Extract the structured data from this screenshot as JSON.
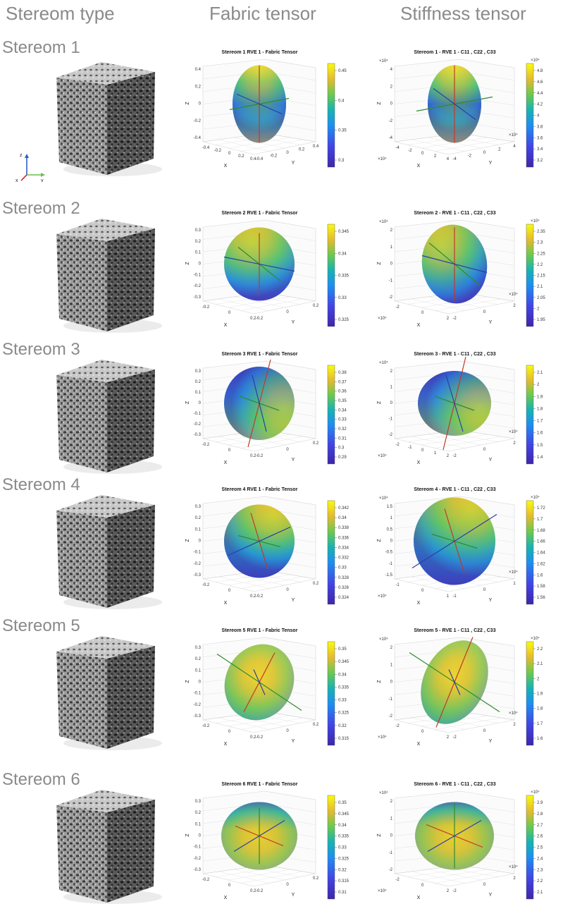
{
  "headers": {
    "col1": "Stereom type",
    "col2": "Fabric tensor",
    "col3": "Stiffness tensor"
  },
  "axes_icon": {
    "z": "z",
    "y": "y",
    "x": "x"
  },
  "rows": [
    {
      "label": "Stereom 1",
      "fabric": {
        "title": "Stereom 1 RVE 1 - Fabric Tensor",
        "zticks": [
          "0.4",
          "0.2",
          "0",
          "-0.2",
          "-0.4"
        ],
        "xticks": [
          "-0.4",
          "-0.2",
          "0",
          "0.2",
          "0.4"
        ],
        "yticks": [
          "-0.4",
          "-0.2",
          "0",
          "0.2",
          "0.4"
        ],
        "cbticks": [
          "0.45",
          "0.4",
          "0.35",
          "0.3"
        ],
        "xlabel": "X",
        "ylabel": "Y",
        "zlabel": "Z"
      },
      "stiff": {
        "title": "Stereom 1 - RVE 1 - C11 , C22 , C33",
        "multiplier": "×10⁴",
        "cbmultiplier": "×10⁴",
        "zticks": [
          "4",
          "2",
          "0",
          "-2",
          "-4"
        ],
        "xticks": [
          "-4",
          "-2",
          "0",
          "2",
          "4"
        ],
        "yticks": [
          "-4",
          "-2",
          "0",
          "2",
          "4"
        ],
        "cbticks": [
          "4.8",
          "4.6",
          "4.4",
          "4.2",
          "4",
          "3.8",
          "3.6",
          "3.4",
          "3.2"
        ],
        "xlabel": "X",
        "ylabel": "Y",
        "zlabel": "Z"
      }
    },
    {
      "label": "Stereom 2",
      "fabric": {
        "title": "Stereom 2 RVE 1 - Fabric Tensor",
        "zticks": [
          "0.3",
          "0.2",
          "0.1",
          "0",
          "-0.1",
          "-0.2",
          "-0.3"
        ],
        "xticks": [
          "-0.2",
          "0",
          "0.2"
        ],
        "yticks": [
          "-0.2",
          "0",
          "0.2"
        ],
        "cbticks": [
          "0.345",
          "0.34",
          "0.335",
          "0.33",
          "0.325"
        ],
        "xlabel": "X",
        "ylabel": "Y",
        "zlabel": "Z"
      },
      "stiff": {
        "title": "Stereom 2 - RVE 1 - C11 , C22 , C33",
        "multiplier": "×10⁴",
        "cbmultiplier": "×10⁴",
        "zticks": [
          "2",
          "1",
          "0",
          "-1",
          "-2"
        ],
        "xticks": [
          "-2",
          "0",
          "2"
        ],
        "yticks": [
          "-2",
          "0",
          "2"
        ],
        "cbticks": [
          "2.35",
          "2.3",
          "2.25",
          "2.2",
          "2.15",
          "2.1",
          "2.05",
          "2",
          "1.95"
        ],
        "xlabel": "X",
        "ylabel": "Y",
        "zlabel": "Z"
      }
    },
    {
      "label": "Stereom 3",
      "fabric": {
        "title": "Stereom 3 RVE 1 - Fabric Tensor",
        "zticks": [
          "0.3",
          "0.2",
          "0.1",
          "0",
          "-0.1",
          "-0.2",
          "-0.3"
        ],
        "xticks": [
          "-0.2",
          "0",
          "0.2"
        ],
        "yticks": [
          "-0.2",
          "0",
          "0.2"
        ],
        "cbticks": [
          "0.38",
          "0.37",
          "0.36",
          "0.35",
          "0.34",
          "0.33",
          "0.32",
          "0.31",
          "0.3",
          "0.29"
        ],
        "xlabel": "X",
        "ylabel": "Y",
        "zlabel": "Z"
      },
      "stiff": {
        "title": "Stereom 3 - RVE 1 - C11 , C22 , C33",
        "multiplier": "×10⁴",
        "cbmultiplier": "",
        "zticks": [
          "2",
          "1",
          "0",
          "-1",
          "-2"
        ],
        "xticks": [
          "-2",
          "-1",
          "0",
          "1",
          "2"
        ],
        "yticks": [
          "-2",
          "0",
          "2"
        ],
        "cbticks": [
          "2.1",
          "2",
          "1.9",
          "1.8",
          "1.7",
          "1.6",
          "1.5",
          "1.4"
        ],
        "xlabel": "X",
        "ylabel": "Y",
        "zlabel": "Z"
      }
    },
    {
      "label": "Stereom 4",
      "fabric": {
        "title": "Stereom 4 RVE 1 - Fabric Tensor",
        "zticks": [
          "0.3",
          "0.2",
          "0.1",
          "0",
          "-0.1",
          "-0.2",
          "-0.3"
        ],
        "xticks": [
          "-0.2",
          "0",
          "0.2"
        ],
        "yticks": [
          "-0.2",
          "0",
          "0.2"
        ],
        "cbticks": [
          "0.342",
          "0.34",
          "0.338",
          "0.336",
          "0.334",
          "0.332",
          "0.33",
          "0.328",
          "0.326",
          "0.324"
        ],
        "xlabel": "X",
        "ylabel": "Y",
        "zlabel": "Z"
      },
      "stiff": {
        "title": "Stereom 4 - RVE 1 - C11 , C22 , C33",
        "multiplier": "×10⁴",
        "cbmultiplier": "×10⁴",
        "zticks": [
          "1.5",
          "1",
          "0.5",
          "0",
          "-0.5",
          "-1",
          "-1.5"
        ],
        "xticks": [
          "-1",
          "0",
          "1"
        ],
        "yticks": [
          "-1",
          "0",
          "1"
        ],
        "cbticks": [
          "1.72",
          "1.7",
          "1.68",
          "1.66",
          "1.64",
          "1.62",
          "1.6",
          "1.58",
          "1.56"
        ],
        "xlabel": "X",
        "ylabel": "Y",
        "zlabel": "Z"
      }
    },
    {
      "label": "Stereom 5",
      "fabric": {
        "title": "Stereom 5 RVE 1 - Fabric Tensor",
        "zticks": [
          "0.3",
          "0.2",
          "0.1",
          "0",
          "-0.1",
          "-0.2",
          "-0.3"
        ],
        "xticks": [
          "-0.2",
          "0",
          "0.2"
        ],
        "yticks": [
          "-0.2",
          "0",
          "0.2"
        ],
        "cbticks": [
          "0.35",
          "0.345",
          "0.34",
          "0.335",
          "0.33",
          "0.325",
          "0.32",
          "0.315"
        ],
        "xlabel": "X",
        "ylabel": "Y",
        "zlabel": "Z"
      },
      "stiff": {
        "title": "Stereom 5 - RVE 1 - C11 , C22 , C33",
        "multiplier": "×10⁴",
        "cbmultiplier": "×10⁴",
        "zticks": [
          "2",
          "1",
          "0",
          "-1",
          "-2"
        ],
        "xticks": [
          "-2",
          "0",
          "2"
        ],
        "yticks": [
          "-2",
          "0",
          "2"
        ],
        "cbticks": [
          "2.2",
          "2.1",
          "2",
          "1.9",
          "1.8",
          "1.7",
          "1.6"
        ],
        "xlabel": "X",
        "ylabel": "Y",
        "zlabel": "Z"
      }
    },
    {
      "label": "Stereom 6",
      "fabric": {
        "title": "Stereom 6 RVE 1 - Fabric Tensor",
        "zticks": [
          "0.3",
          "0.2",
          "0.1",
          "0",
          "-0.1",
          "-0.2",
          "-0.3"
        ],
        "xticks": [
          "-0.2",
          "0",
          "0.2"
        ],
        "yticks": [
          "-0.2",
          "0",
          "0.2"
        ],
        "cbticks": [
          "0.35",
          "0.345",
          "0.34",
          "0.335",
          "0.33",
          "0.325",
          "0.32",
          "0.315",
          "0.31"
        ],
        "xlabel": "X",
        "ylabel": "Y",
        "zlabel": "Z"
      },
      "stiff": {
        "title": "Stereom 6 - RVE 1 - C11 , C22 , C33",
        "multiplier": "×10⁴",
        "cbmultiplier": "×10⁴",
        "zticks": [
          "2",
          "1",
          "0",
          "-1",
          "-2"
        ],
        "xticks": [
          "-2",
          "0",
          "2"
        ],
        "yticks": [
          "-2",
          "0",
          "2"
        ],
        "cbticks": [
          "2.9",
          "2.8",
          "2.7",
          "2.6",
          "2.5",
          "2.4",
          "2.3",
          "2.2",
          "2.1"
        ],
        "xlabel": "X",
        "ylabel": "Y",
        "zlabel": "Z"
      }
    }
  ],
  "colors": {
    "header_text": "#8a8a8a",
    "parula_low": "#3e26a8",
    "parula_mid": "#18b3b2",
    "parula_high": "#f9fb0e",
    "axis_red": "#c0392b",
    "axis_green": "#2e8b2e",
    "axis_blue": "#2b3ea8"
  }
}
